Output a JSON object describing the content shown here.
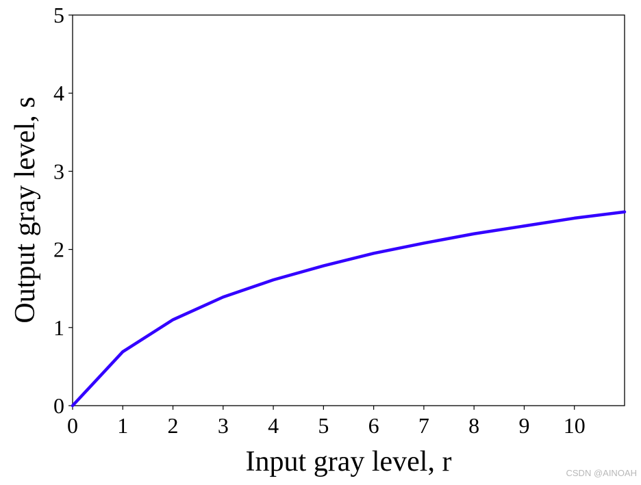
{
  "chart_data": {
    "type": "line",
    "title": "",
    "xlabel": "Input gray level, r",
    "ylabel": "Output gray level, s",
    "xlim": [
      0,
      11
    ],
    "ylim": [
      0,
      5
    ],
    "xticks": [
      "0",
      "1",
      "2",
      "3",
      "4",
      "5",
      "6",
      "7",
      "8",
      "9",
      "10"
    ],
    "yticks": [
      "0",
      "1",
      "2",
      "3",
      "4",
      "5"
    ],
    "grid": false,
    "series": [
      {
        "color": "#3300ff",
        "x": [
          0,
          1,
          2,
          3,
          4,
          5,
          6,
          7,
          8,
          9,
          10,
          11
        ],
        "y": [
          0,
          0.69,
          1.1,
          1.39,
          1.61,
          1.79,
          1.95,
          2.08,
          2.2,
          2.3,
          2.4,
          2.48
        ]
      }
    ]
  },
  "watermark": "CSDN @AINOAH"
}
